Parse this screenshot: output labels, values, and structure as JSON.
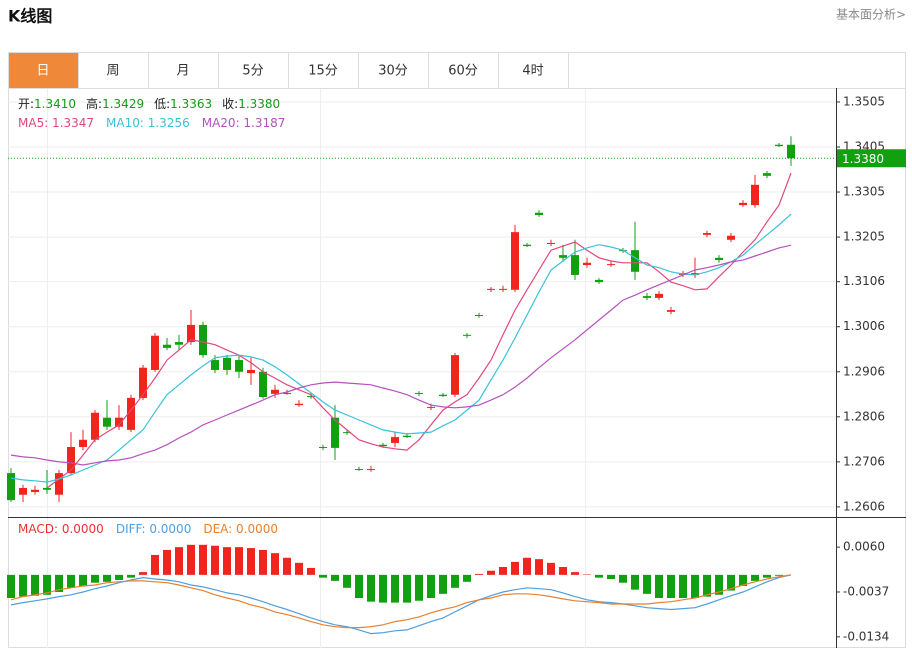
{
  "header": {
    "title": "K线图",
    "link": "基本面分析>"
  },
  "tabs": [
    "日",
    "周",
    "月",
    "5分",
    "15分",
    "30分",
    "60分",
    "4时"
  ],
  "active_tab": 0,
  "chart_data": [
    {
      "type": "candlestick",
      "info": [
        {
          "label": "开:",
          "value": "1.3410"
        },
        {
          "label": "高:",
          "value": "1.3429"
        },
        {
          "label": "低:",
          "value": "1.3363"
        },
        {
          "label": "收:",
          "value": "1.3380"
        }
      ],
      "up_color": "#f0261c",
      "down_color": "#10a010",
      "open": [
        1.2681,
        1.2633,
        1.2639,
        1.2648,
        1.2633,
        1.2681,
        1.2739,
        1.2755,
        1.2804,
        1.2784,
        1.2777,
        1.2848,
        1.291,
        1.2966,
        1.2972,
        1.2972,
        1.301,
        1.2932,
        1.2937,
        1.2932,
        1.2903,
        1.2906,
        1.2857,
        1.2857,
        1.2832,
        1.2852,
        1.2739,
        1.2804,
        1.2772,
        1.269,
        1.2688,
        1.2744,
        1.2748,
        1.2764,
        1.2859,
        1.2826,
        1.2855,
        1.2855,
        1.2988,
        1.3032,
        1.3088,
        1.3088,
        1.3088,
        1.3188,
        1.3259,
        1.319,
        1.3165,
        1.3165,
        1.3143,
        1.311,
        1.3143,
        1.3176,
        1.3176,
        1.3074,
        1.307,
        1.3039,
        1.3121,
        1.3121,
        1.321,
        1.3159,
        1.3199,
        1.3276,
        1.3276,
        1.3347,
        1.341,
        1.341
      ],
      "high": [
        1.2692,
        1.2655,
        1.2653,
        1.2688,
        1.2688,
        1.2772,
        1.2777,
        1.2821,
        1.2843,
        1.2832,
        1.2855,
        1.2921,
        1.2992,
        1.2981,
        1.2988,
        1.3043,
        1.3017,
        1.2943,
        1.2943,
        1.2943,
        1.2937,
        1.2915,
        1.2877,
        1.2866,
        1.2843,
        1.2859,
        1.2744,
        1.2832,
        1.2777,
        1.2695,
        1.2697,
        1.2748,
        1.2772,
        1.277,
        1.2863,
        1.2835,
        1.2859,
        1.2948,
        1.2992,
        1.3037,
        1.3094,
        1.3097,
        1.3232,
        1.3192,
        1.3265,
        1.3199,
        1.3188,
        1.3199,
        1.3159,
        1.3114,
        1.3152,
        1.3181,
        1.3239,
        1.3081,
        1.3085,
        1.305,
        1.313,
        1.3159,
        1.3219,
        1.3165,
        1.3214,
        1.3287,
        1.3343,
        1.3352,
        1.3414,
        1.3429
      ],
      "low": [
        1.2617,
        1.2617,
        1.2633,
        1.2635,
        1.2617,
        1.2677,
        1.2732,
        1.275,
        1.2777,
        1.2777,
        1.2772,
        1.2843,
        1.2906,
        1.2954,
        1.2954,
        1.2966,
        1.2937,
        1.2903,
        1.2899,
        1.2892,
        1.2877,
        1.2846,
        1.2848,
        1.2855,
        1.2828,
        1.2846,
        1.2732,
        1.271,
        1.2766,
        1.2686,
        1.2684,
        1.2737,
        1.2739,
        1.2759,
        1.2852,
        1.2821,
        1.285,
        1.285,
        1.2981,
        1.3026,
        1.3083,
        1.3083,
        1.3083,
        1.3183,
        1.325,
        1.3185,
        1.315,
        1.311,
        1.3137,
        1.3101,
        1.3139,
        1.317,
        1.311,
        1.3065,
        1.3065,
        1.3034,
        1.3116,
        1.3114,
        1.3205,
        1.3148,
        1.3194,
        1.3272,
        1.327,
        1.3336,
        1.3405,
        1.3363
      ],
      "close": [
        1.2621,
        1.2648,
        1.2644,
        1.2644,
        1.2681,
        1.2739,
        1.2755,
        1.2815,
        1.2784,
        1.2804,
        1.2848,
        1.2915,
        1.2986,
        1.2959,
        1.2966,
        1.301,
        1.2943,
        1.291,
        1.291,
        1.2906,
        1.291,
        1.285,
        1.2866,
        1.2859,
        1.2835,
        1.285,
        1.2737,
        1.2737,
        1.277,
        1.2688,
        1.269,
        1.2741,
        1.2761,
        1.2761,
        1.2857,
        1.2828,
        1.2852,
        1.2943,
        1.2986,
        1.303,
        1.309,
        1.309,
        1.3216,
        1.3185,
        1.3254,
        1.3192,
        1.3159,
        1.3121,
        1.3148,
        1.3105,
        1.3145,
        1.3174,
        1.3128,
        1.307,
        1.3079,
        1.3043,
        1.3125,
        1.3125,
        1.3214,
        1.3154,
        1.3208,
        1.3281,
        1.3321,
        1.3341,
        1.3407,
        1.338
      ],
      "series": [
        {
          "legend": "MA5: 1.3347",
          "color": "#e2467e",
          "values": [
            null,
            null,
            null,
            1.2648,
            1.2668,
            1.2688,
            1.2721,
            1.2755,
            1.2772,
            1.2788,
            1.2821,
            1.2855,
            1.2892,
            1.2932,
            1.2954,
            1.2977,
            1.2972,
            1.2966,
            1.2954,
            1.2943,
            1.2926,
            1.2906,
            1.2892,
            1.2877,
            1.2866,
            1.2855,
            1.2826,
            1.2799,
            1.2777,
            1.2755,
            1.2746,
            1.2739,
            1.2735,
            1.2732,
            1.2755,
            1.2788,
            1.2821,
            1.2839,
            1.2855,
            1.2892,
            1.2932,
            1.2988,
            1.3043,
            1.3088,
            1.3132,
            1.3176,
            1.3185,
            1.3194,
            1.3176,
            1.3159,
            1.3152,
            1.3148,
            1.3148,
            1.3148,
            1.3128,
            1.3105,
            1.3097,
            1.3088,
            1.309,
            1.3117,
            1.3143,
            1.3172,
            1.3199,
            1.3239,
            1.3276,
            1.3347
          ]
        },
        {
          "legend": "MA10: 1.3256",
          "color": "#37c3d9",
          "values": [
            1.267,
            1.2666,
            1.2664,
            1.2661,
            1.2668,
            1.2677,
            1.2688,
            1.2699,
            1.271,
            1.2732,
            1.2755,
            1.2777,
            1.2817,
            1.2855,
            1.2877,
            1.2899,
            1.2919,
            1.2937,
            1.2941,
            1.2943,
            1.2939,
            1.2932,
            1.2917,
            1.2899,
            1.2879,
            1.2859,
            1.2839,
            1.2821,
            1.281,
            1.2799,
            1.2788,
            1.2777,
            1.2772,
            1.2768,
            1.277,
            1.2772,
            1.2786,
            1.2799,
            1.2821,
            1.2843,
            1.2888,
            1.2932,
            1.2981,
            1.3032,
            1.3083,
            1.3132,
            1.3152,
            1.3172,
            1.3181,
            1.3188,
            1.3183,
            1.3176,
            1.3159,
            1.3143,
            1.3137,
            1.3128,
            1.3123,
            1.3121,
            1.3128,
            1.3137,
            1.315,
            1.3165,
            1.3188,
            1.321,
            1.3232,
            1.3256
          ]
        },
        {
          "legend": "MA20: 1.3187",
          "color": "#b552be",
          "values": [
            1.2721,
            1.2717,
            1.2715,
            1.271,
            1.2706,
            1.2704,
            1.2699,
            1.2704,
            1.2708,
            1.271,
            1.2715,
            1.2724,
            1.2732,
            1.2744,
            1.2759,
            1.2772,
            1.2788,
            1.2799,
            1.281,
            1.2821,
            1.2832,
            1.2843,
            1.2855,
            1.2861,
            1.287,
            1.2877,
            1.2881,
            1.2883,
            1.2881,
            1.2879,
            1.2877,
            1.287,
            1.2863,
            1.2855,
            1.2843,
            1.2832,
            1.2828,
            1.2826,
            1.2828,
            1.2832,
            1.2843,
            1.2855,
            1.2872,
            1.2892,
            1.2915,
            1.2937,
            1.2957,
            1.2977,
            1.2999,
            1.3021,
            1.3043,
            1.3065,
            1.3076,
            1.3088,
            1.3099,
            1.311,
            1.3121,
            1.3132,
            1.3137,
            1.3143,
            1.315,
            1.3154,
            1.3163,
            1.3172,
            1.3181,
            1.3187
          ]
        }
      ],
      "last_price": {
        "value": 1.338,
        "label": "1.3380"
      },
      "last_price_color": "#10a010",
      "ylim": [
        1.2588,
        1.3536
      ],
      "yticks": [
        1.3505,
        1.3405,
        1.3305,
        1.3205,
        1.3106,
        1.3006,
        1.2906,
        1.2806,
        1.2706,
        1.2606
      ],
      "grid": true
    },
    {
      "type": "macd",
      "histogram": {
        "legend": "MACD: 0.0000",
        "color": "#e8342e",
        "up_color": "#f0261c",
        "down_color": "#10a010",
        "values": [
          -0.005,
          -0.0047,
          -0.0045,
          -0.0043,
          -0.0037,
          -0.0028,
          -0.0024,
          -0.0017,
          -0.0015,
          -0.0011,
          -0.0006,
          0.0006,
          0.0043,
          0.0054,
          0.006,
          0.0065,
          0.0065,
          0.0063,
          0.006,
          0.006,
          0.0058,
          0.0054,
          0.0047,
          0.0037,
          0.0026,
          0.0015,
          -0.0006,
          -0.0013,
          -0.0028,
          -0.005,
          -0.0058,
          -0.006,
          -0.006,
          -0.006,
          -0.0056,
          -0.005,
          -0.0041,
          -0.0028,
          -0.0015,
          0.0002,
          0.0009,
          0.0017,
          0.0028,
          0.0037,
          0.0034,
          0.0026,
          0.0017,
          0.0006,
          0.0001,
          -0.0006,
          -0.0009,
          -0.0017,
          -0.0032,
          -0.0041,
          -0.005,
          -0.005,
          -0.005,
          -0.005,
          -0.0047,
          -0.0043,
          -0.0034,
          -0.0024,
          -0.0013,
          -0.0006,
          -0.0002,
          0
        ]
      },
      "series": [
        {
          "legend": "DIFF: 0.0000",
          "color": "#4f9fe0",
          "values": [
            -0.0065,
            -0.006,
            -0.0056,
            -0.0052,
            -0.0047,
            -0.0043,
            -0.0037,
            -0.003,
            -0.0024,
            -0.0017,
            -0.0011,
            -0.0006,
            -0.0009,
            -0.0011,
            -0.0015,
            -0.0022,
            -0.0026,
            -0.0032,
            -0.0039,
            -0.0043,
            -0.005,
            -0.0058,
            -0.0067,
            -0.0075,
            -0.0084,
            -0.0093,
            -0.0101,
            -0.0108,
            -0.0112,
            -0.0119,
            -0.0127,
            -0.0125,
            -0.0121,
            -0.0119,
            -0.011,
            -0.0101,
            -0.0093,
            -0.008,
            -0.0067,
            -0.0054,
            -0.0045,
            -0.0037,
            -0.0032,
            -0.0028,
            -0.003,
            -0.0032,
            -0.0039,
            -0.0047,
            -0.0054,
            -0.0058,
            -0.006,
            -0.0063,
            -0.0067,
            -0.0071,
            -0.0073,
            -0.0075,
            -0.0073,
            -0.0071,
            -0.0063,
            -0.0054,
            -0.0045,
            -0.0037,
            -0.0026,
            -0.0015,
            -0.0006,
            0
          ]
        },
        {
          "legend": "DEA: 0.0000",
          "color": "#e8802e",
          "values": [
            -0.0054,
            -0.0047,
            -0.0043,
            -0.0039,
            -0.0032,
            -0.0028,
            -0.0024,
            -0.0022,
            -0.0017,
            -0.0015,
            -0.0013,
            -0.0013,
            -0.0015,
            -0.0017,
            -0.0022,
            -0.0028,
            -0.0034,
            -0.0043,
            -0.005,
            -0.0056,
            -0.0065,
            -0.0071,
            -0.008,
            -0.0086,
            -0.0093,
            -0.0101,
            -0.0108,
            -0.0112,
            -0.0114,
            -0.0114,
            -0.0112,
            -0.0108,
            -0.0101,
            -0.0097,
            -0.0091,
            -0.0082,
            -0.0075,
            -0.0069,
            -0.006,
            -0.0054,
            -0.005,
            -0.0043,
            -0.0041,
            -0.0041,
            -0.0043,
            -0.0047,
            -0.0052,
            -0.0056,
            -0.0058,
            -0.006,
            -0.0063,
            -0.0063,
            -0.0063,
            -0.0063,
            -0.006,
            -0.0058,
            -0.0054,
            -0.005,
            -0.0043,
            -0.0037,
            -0.003,
            -0.0022,
            -0.0015,
            -0.0009,
            -0.0004,
            0
          ]
        }
      ],
      "ylim": [
        -0.0156,
        0.0123
      ],
      "yticks": [
        {
          "value": 0.006,
          "label": "0.0060"
        },
        {
          "value": -0.0037,
          "label": "-0.0037"
        },
        {
          "value": -0.0134,
          "label": "-0.0134"
        }
      ]
    }
  ]
}
